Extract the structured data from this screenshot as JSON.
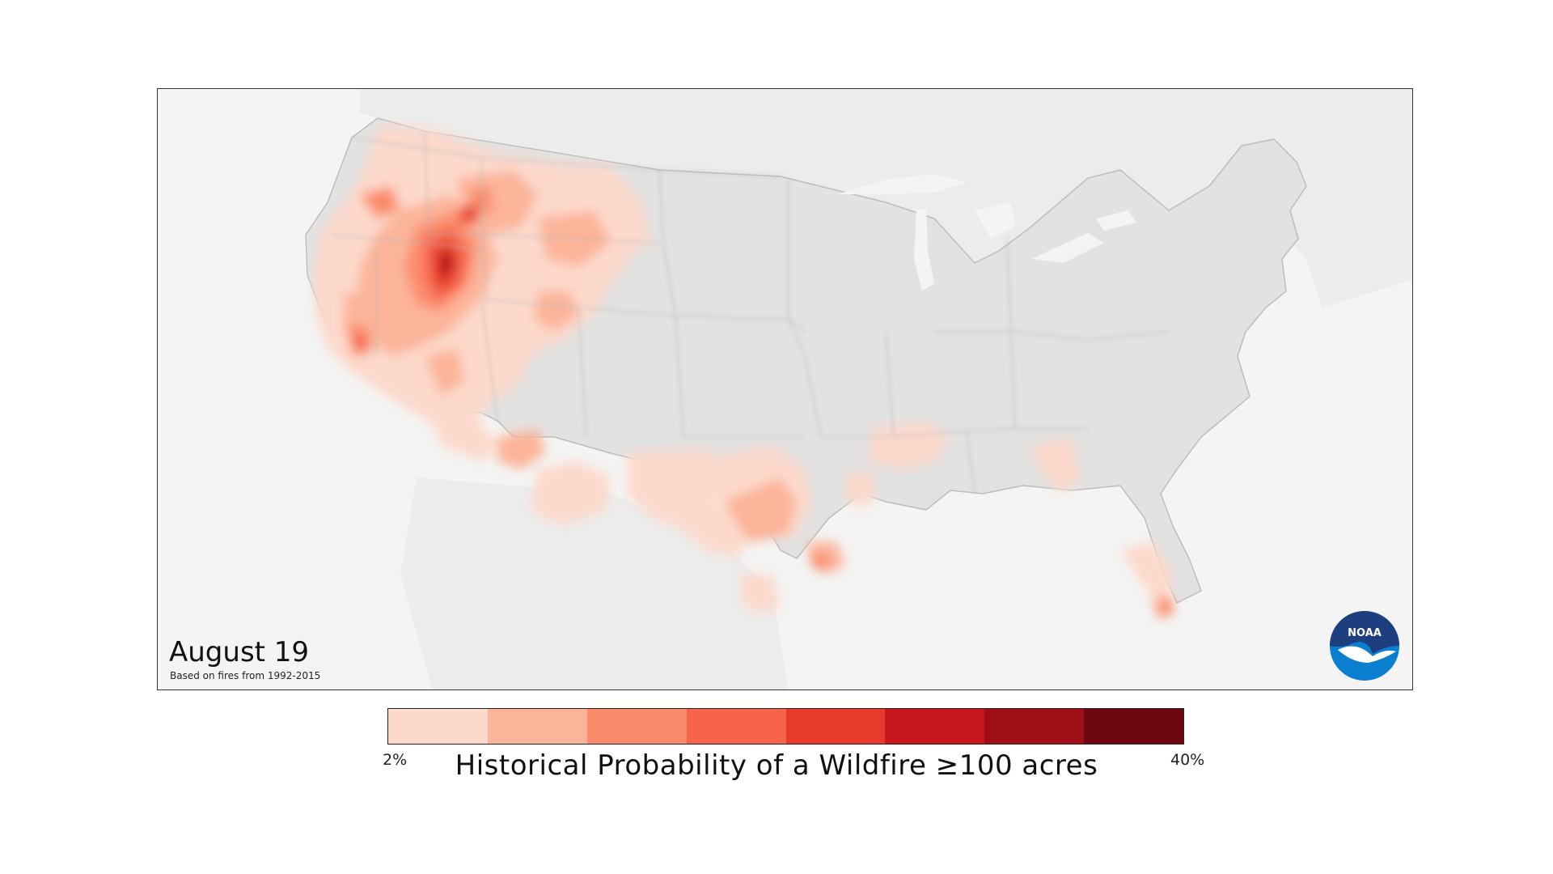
{
  "map": {
    "date": "August 19",
    "source_note": "Based on fires from 1992-2015",
    "logo_text": "NOAA"
  },
  "legend": {
    "min_label": "2%",
    "max_label": "40%",
    "title": "Historical Probability of a Wildfire ≥100 acres",
    "colors": [
      "#fdd9cc",
      "#fcb49a",
      "#fb8b6c",
      "#f5634b",
      "#e53a2c",
      "#c5171c",
      "#9f0f16",
      "#6d0610"
    ]
  }
}
